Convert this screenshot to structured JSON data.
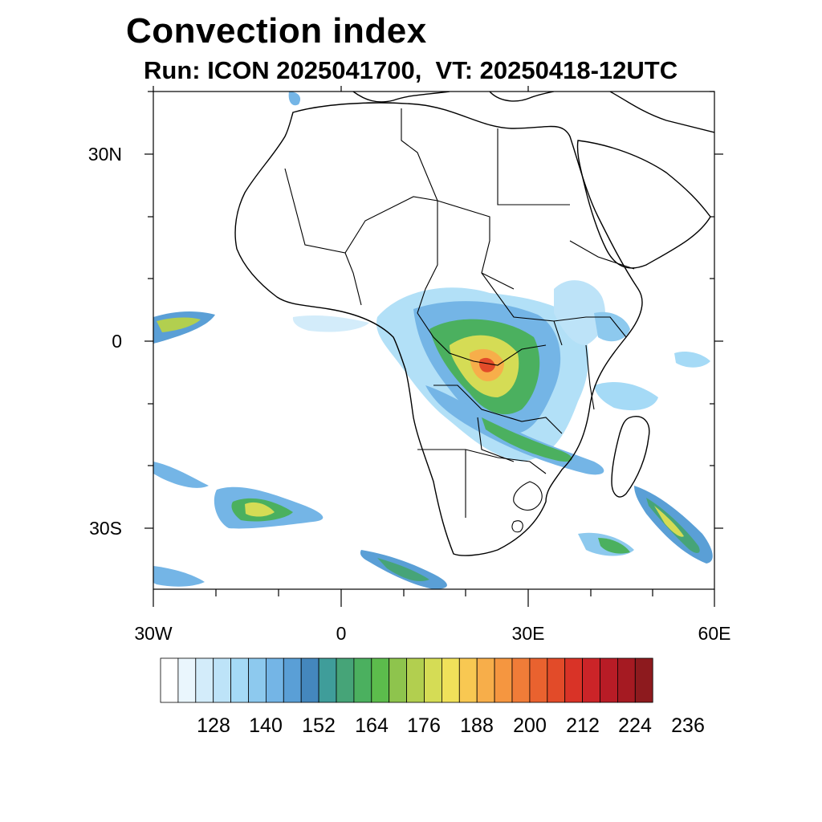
{
  "title": "Convection index",
  "subtitle": "Run: ICON 2025041700,  VT: 20250418-12UTC",
  "axes": {
    "lat_labels": [
      "30N",
      "0",
      "30S"
    ],
    "lon_labels": [
      "30W",
      "0",
      "30E",
      "60E"
    ]
  },
  "colorbar": {
    "labels": [
      "128",
      "140",
      "152",
      "164",
      "176",
      "188",
      "200",
      "212",
      "224",
      "236"
    ],
    "colors": [
      "#ffffff",
      "#eaf6fd",
      "#d3ecfa",
      "#bde3f8",
      "#a5daf6",
      "#8dc9ee",
      "#74b5e6",
      "#5a9fd6",
      "#4487bd",
      "#3f9d9a",
      "#46a478",
      "#4bb05f",
      "#5cbc4c",
      "#8ec44d",
      "#b2cf4f",
      "#d5dc55",
      "#f0e15a",
      "#f8c852",
      "#f7ae4a",
      "#f59640",
      "#f07c38",
      "#e9622f",
      "#e24b29",
      "#d93327",
      "#cb2428",
      "#b81c26",
      "#a51a22",
      "#8d1a1e"
    ]
  }
}
